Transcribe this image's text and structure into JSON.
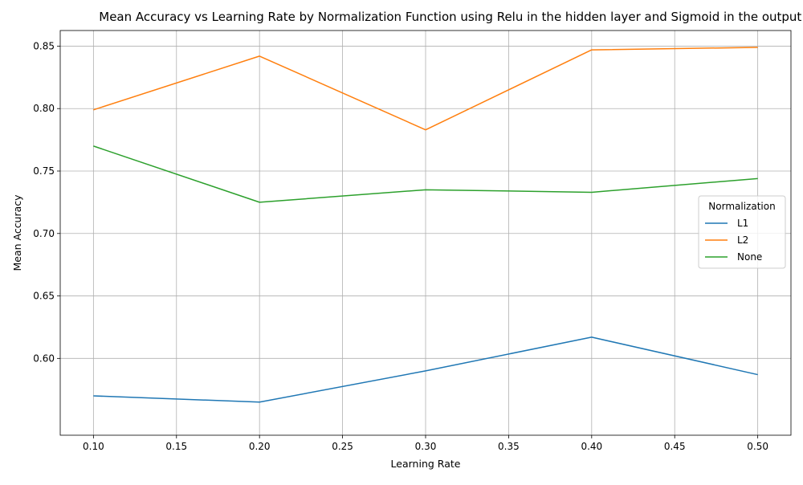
{
  "chart_data": {
    "type": "line",
    "title": "Mean Accuracy vs Learning Rate by Normalization Function using Relu in the hidden layer and Sigmoid in the output layer",
    "xlabel": "Learning Rate",
    "ylabel": "Mean Accuracy",
    "x": [
      0.1,
      0.2,
      0.3,
      0.4,
      0.5
    ],
    "series": [
      {
        "name": "L1",
        "color": "#1f77b4",
        "values": [
          0.57,
          0.565,
          0.59,
          0.617,
          0.587
        ]
      },
      {
        "name": "L2",
        "color": "#ff7f0e",
        "values": [
          0.799,
          0.842,
          0.783,
          0.847,
          0.849
        ]
      },
      {
        "name": "None",
        "color": "#2ca02c",
        "values": [
          0.77,
          0.725,
          0.735,
          0.733,
          0.744
        ]
      }
    ],
    "xlim": [
      0.08,
      0.52
    ],
    "ylim": [
      0.5385,
      0.8625
    ],
    "xticks": [
      "0.10",
      "0.15",
      "0.20",
      "0.25",
      "0.30",
      "0.35",
      "0.40",
      "0.45",
      "0.50"
    ],
    "yticks": [
      "0.60",
      "0.65",
      "0.70",
      "0.75",
      "0.80",
      "0.85"
    ],
    "grid": true,
    "legend": {
      "title": "Normalization",
      "placement": "center-right"
    }
  }
}
